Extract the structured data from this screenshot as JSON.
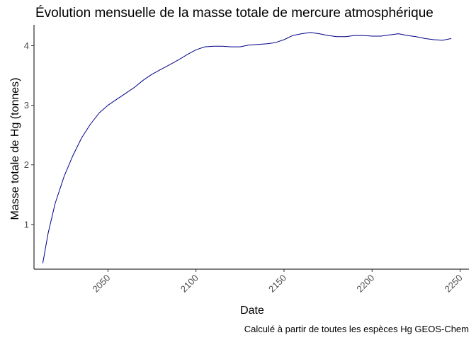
{
  "chart_data": {
    "type": "line",
    "title": "Évolution mensuelle de la masse totale de mercure atmosphérique",
    "xlabel": "Date",
    "ylabel": "Masse totale de Hg (tonnes)",
    "caption": "Calculé à partir de toutes les espèces Hg GEOS-Chem",
    "xlim": [
      2008,
      2255
    ],
    "ylim": [
      0.25,
      4.35
    ],
    "x_ticks": [
      2050,
      2100,
      2150,
      2200,
      2250
    ],
    "y_ticks": [
      1,
      2,
      3,
      4
    ],
    "x_tick_labels": [
      "2050",
      "2100",
      "2150",
      "2200",
      "2250"
    ],
    "y_tick_labels": [
      "1",
      "2",
      "3",
      "4"
    ],
    "grid": false,
    "line_color": "#00008b",
    "series": [
      {
        "x": [
          2013,
          2016,
          2020,
          2025,
          2030,
          2035,
          2040,
          2045,
          2050,
          2055,
          2060,
          2065,
          2070,
          2075,
          2080,
          2085,
          2090,
          2095,
          2100,
          2105,
          2110,
          2115,
          2120,
          2125,
          2130,
          2135,
          2140,
          2145,
          2150,
          2155,
          2160,
          2165,
          2170,
          2175,
          2180,
          2185,
          2190,
          2195,
          2200,
          2205,
          2210,
          2215,
          2220,
          2225,
          2230,
          2235,
          2240,
          2245
        ],
        "y": [
          0.35,
          0.85,
          1.35,
          1.8,
          2.15,
          2.45,
          2.68,
          2.87,
          3.0,
          3.1,
          3.2,
          3.3,
          3.42,
          3.52,
          3.6,
          3.68,
          3.76,
          3.85,
          3.93,
          3.98,
          3.99,
          3.99,
          3.98,
          3.98,
          4.01,
          4.02,
          4.03,
          4.05,
          4.1,
          4.17,
          4.2,
          4.22,
          4.2,
          4.17,
          4.15,
          4.15,
          4.17,
          4.17,
          4.16,
          4.16,
          4.18,
          4.2,
          4.17,
          4.15,
          4.12,
          4.1,
          4.09,
          4.12
        ]
      }
    ]
  }
}
